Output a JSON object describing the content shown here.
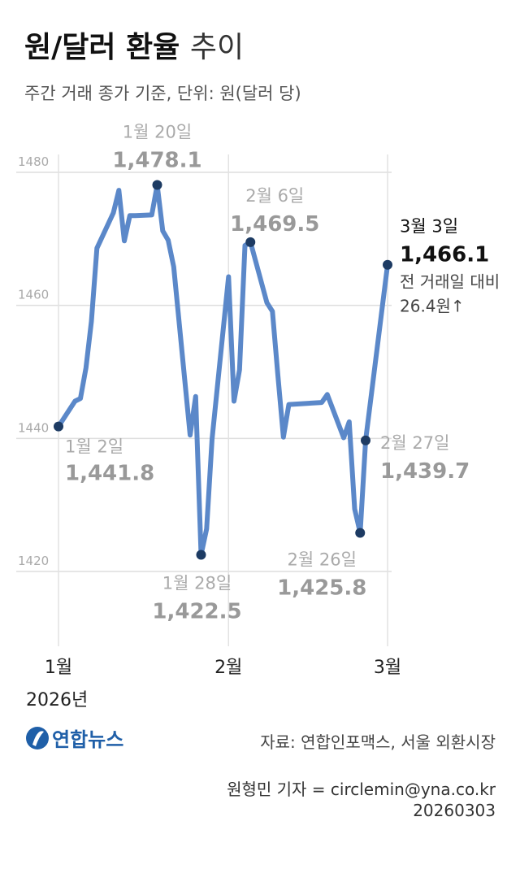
{
  "chart_data": {
    "type": "line",
    "title": "원/달러 환율",
    "title_suffix": "추이",
    "subtitle": "주간 거래 종가 기준, 단위: 원(달러 당)",
    "x": [
      "2026-01-02",
      "2026-01-05",
      "2026-01-06",
      "2026-01-07",
      "2026-01-08",
      "2026-01-09",
      "2026-01-12",
      "2026-01-13",
      "2026-01-14",
      "2026-01-15",
      "2026-01-16",
      "2026-01-19",
      "2026-01-20",
      "2026-01-21",
      "2026-01-22",
      "2026-01-23",
      "2026-01-26",
      "2026-01-27",
      "2026-01-28",
      "2026-01-29",
      "2026-01-30",
      "2026-02-02",
      "2026-02-03",
      "2026-02-04",
      "2026-02-05",
      "2026-02-06",
      "2026-02-09",
      "2026-02-10",
      "2026-02-11",
      "2026-02-12",
      "2026-02-13",
      "2026-02-19",
      "2026-02-20",
      "2026-02-23",
      "2026-02-24",
      "2026-02-25",
      "2026-02-26",
      "2026-02-27",
      "2026-03-03"
    ],
    "series": [
      {
        "name": "원/달러 환율",
        "color": "#5b88c9",
        "values": [
          1441.8,
          1445.6,
          1446.0,
          1450.6,
          1457.6,
          1468.6,
          1473.9,
          1477.3,
          1469.7,
          1473.5,
          1473.5,
          1473.6,
          1478.1,
          1471.2,
          1469.8,
          1465.8,
          1440.5,
          1446.3,
          1422.5,
          1426.4,
          1439.9,
          1464.3,
          1445.6,
          1450.3,
          1469.0,
          1469.5,
          1460.4,
          1459.1,
          1449.5,
          1440.2,
          1445.1,
          1445.4,
          1446.6,
          1440.1,
          1442.5,
          1429.4,
          1425.8,
          1439.7,
          1466.1
        ]
      }
    ],
    "xlim": [
      "2026-01-02",
      "2026-03-03"
    ],
    "xticks": [
      {
        "value": "2026-01-02",
        "label": "1월"
      },
      {
        "value": "2026-02-02",
        "label": "2월"
      },
      {
        "value": "2026-03-03",
        "label": "3월"
      }
    ],
    "x_year_label": "2026년",
    "ylim": [
      1420,
      1480
    ],
    "yticks": [
      1420,
      1440,
      1460,
      1480
    ],
    "grid": true,
    "marker_color": "#1d3b63",
    "highlights": [
      {
        "x": "2026-01-02",
        "label": "1월 2일",
        "value_label": "1,441.8"
      },
      {
        "x": "2026-01-20",
        "label": "1월 20일",
        "value_label": "1,478.1"
      },
      {
        "x": "2026-01-28",
        "label": "1월 28일",
        "value_label": "1,422.5"
      },
      {
        "x": "2026-02-06",
        "label": "2월 6일",
        "value_label": "1,469.5"
      },
      {
        "x": "2026-02-26",
        "label": "2월 26일",
        "value_label": "1,425.8"
      },
      {
        "x": "2026-02-27",
        "label": "2월 27일",
        "value_label": "1,439.7"
      },
      {
        "x": "2026-03-03",
        "label": "3월 3일",
        "value_label": "1,466.1",
        "notes": [
          "전 거래일 대비",
          "26.4원↑"
        ]
      }
    ],
    "logo": "연합뉴스",
    "source": "자료: 연합인포맥스, 서울 외환시장",
    "credit": "원형민 기자 = circlemin@yna.co.kr",
    "date": "20260303"
  }
}
